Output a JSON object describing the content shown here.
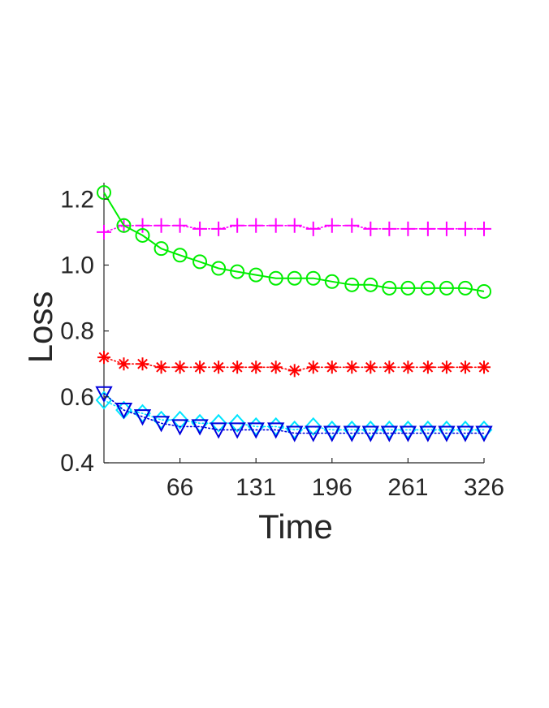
{
  "chart_data": {
    "type": "line",
    "title": "",
    "xlabel": "Time",
    "ylabel": "Loss",
    "xlim": [
      1,
      326
    ],
    "ylim": [
      0.4,
      1.25
    ],
    "xticks": [
      66,
      131,
      196,
      261,
      326
    ],
    "xtick_labels": [
      "66",
      "131",
      "196",
      "261",
      "326"
    ],
    "yticks": [
      0.4,
      0.6,
      0.8,
      1.0,
      1.2
    ],
    "ytick_labels": [
      "0.4",
      "0.6",
      "0.8",
      "1.0",
      "1.2"
    ],
    "grid": false,
    "x": [
      1,
      18,
      34,
      50,
      66,
      83,
      99,
      115,
      131,
      148,
      164,
      180,
      196,
      213,
      229,
      245,
      261,
      278,
      294,
      310,
      326
    ],
    "series": [
      {
        "color": "#ff00ff",
        "marker": "plus",
        "line": "dotted",
        "values": [
          1.1,
          1.12,
          1.12,
          1.12,
          1.12,
          1.11,
          1.11,
          1.12,
          1.12,
          1.12,
          1.12,
          1.11,
          1.12,
          1.12,
          1.11,
          1.11,
          1.11,
          1.11,
          1.11,
          1.11,
          1.11
        ]
      },
      {
        "color": "#00ee00",
        "marker": "circle",
        "line": "solid",
        "values": [
          1.22,
          1.12,
          1.09,
          1.05,
          1.03,
          1.01,
          0.99,
          0.98,
          0.97,
          0.96,
          0.96,
          0.96,
          0.95,
          0.94,
          0.94,
          0.93,
          0.93,
          0.93,
          0.93,
          0.93,
          0.92
        ]
      },
      {
        "color": "#ff0000",
        "marker": "asterisk",
        "line": "dotted",
        "values": [
          0.72,
          0.7,
          0.7,
          0.69,
          0.69,
          0.69,
          0.69,
          0.69,
          0.69,
          0.69,
          0.68,
          0.69,
          0.69,
          0.69,
          0.69,
          0.69,
          0.69,
          0.69,
          0.69,
          0.69,
          0.69
        ]
      },
      {
        "color": "#00e5ff",
        "marker": "diamond",
        "line": "dotted",
        "values": [
          0.59,
          0.56,
          0.55,
          0.53,
          0.53,
          0.52,
          0.52,
          0.52,
          0.51,
          0.51,
          0.5,
          0.51,
          0.5,
          0.5,
          0.5,
          0.5,
          0.5,
          0.5,
          0.5,
          0.5,
          0.5
        ]
      },
      {
        "color": "#0000dd",
        "marker": "triangle-down",
        "line": "dotted",
        "values": [
          0.61,
          0.56,
          0.54,
          0.52,
          0.51,
          0.51,
          0.5,
          0.5,
          0.5,
          0.5,
          0.49,
          0.49,
          0.49,
          0.49,
          0.49,
          0.49,
          0.49,
          0.49,
          0.49,
          0.49,
          0.49
        ]
      }
    ]
  }
}
